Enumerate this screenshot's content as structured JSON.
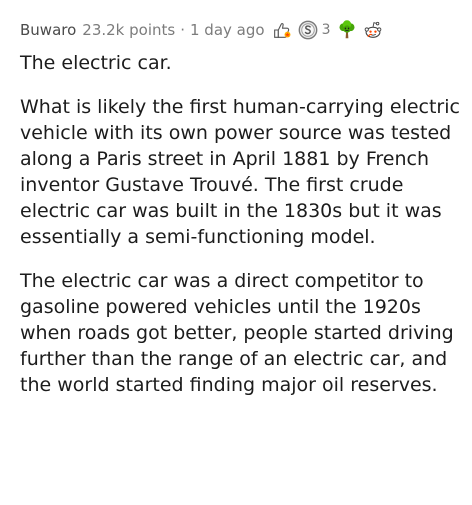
{
  "comment": {
    "author": "Buwaro",
    "points": "23.2k points",
    "separator": "·",
    "age": "1 day ago",
    "awards": [
      {
        "icon": "helpful-award-icon"
      },
      {
        "icon": "silver-coin-award-icon",
        "count": "3"
      },
      {
        "icon": "wholesome-tree-award-icon"
      },
      {
        "icon": "snoo-award-icon"
      }
    ],
    "paragraphs": [
      "The electric car.",
      "What is likely the first human-carrying electric vehicle with its own power source was tested along a Paris street in April 1881 by French inventor Gustave Trouvé. The first crude electric car was built in the 1830s but it was essentially a semi-functioning model.",
      "The electric car was a direct competitor to gasoline powered vehicles until the 1920s when roads got better, people started driving further than the range of an electric car, and the world started finding major oil reserves."
    ]
  }
}
